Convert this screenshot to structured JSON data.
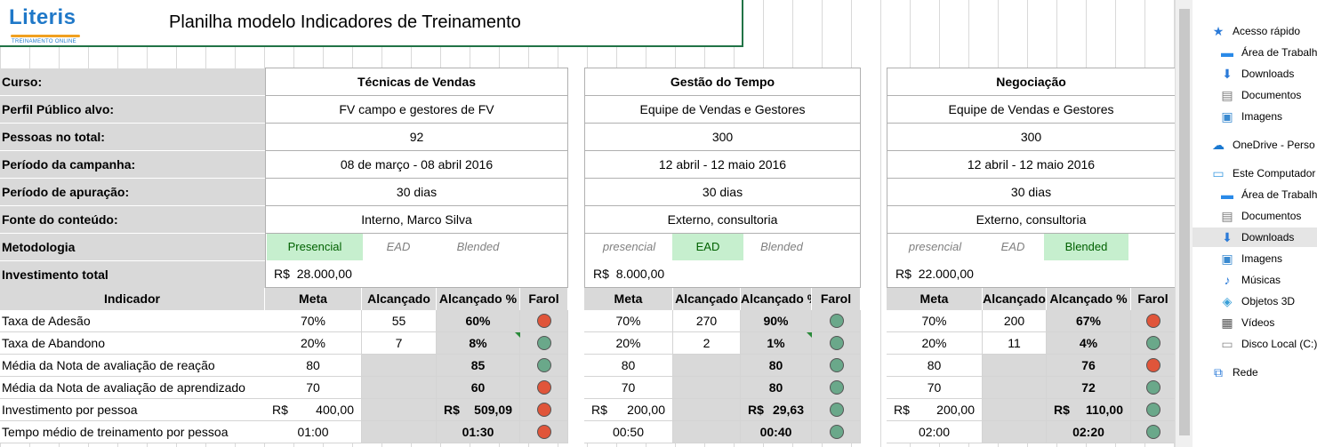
{
  "header": {
    "logo_text": "Literis",
    "logo_tagline": "TREINAMENTO ONLINE",
    "title": "Planilha modelo Indicadores de Treinamento"
  },
  "labels": {
    "curso": "Curso:",
    "perfil": "Perfil Público alvo:",
    "pessoas": "Pessoas no total:",
    "periodo_campanha": "Período da campanha:",
    "periodo_apuracao": "Período de apuração:",
    "fonte": "Fonte do conteúdo:",
    "metodologia": "Metodologia",
    "investimento": "Investimento total",
    "indicador": "Indicador"
  },
  "indicator_headers": {
    "meta": "Meta",
    "alcancado": "Alcançado",
    "alcancado_pct": "Alcançado %",
    "farol": "Farol"
  },
  "indicators": [
    "Taxa de Adesão",
    "Taxa de Abandono",
    "Média da Nota de avaliação de reação",
    "Média da Nota de avaliação de aprendizado",
    "Investimento por pessoa",
    "Tempo médio de treinamento por pessoa"
  ],
  "currency": "R$",
  "courses": [
    {
      "curso": "Técnicas de Vendas",
      "perfil": "FV campo e gestores de FV",
      "pessoas": "92",
      "periodo_campanha": "08 de março - 08 abril 2016",
      "periodo_apuracao": "30 dias",
      "fonte": "Interno, Marco Silva",
      "metodologia": [
        "Presencial",
        "EAD",
        "Blended"
      ],
      "metodologia_selected": 0,
      "investimento": "28.000,00",
      "rows": [
        {
          "meta": "70%",
          "alcancado": "55",
          "pct": "60%",
          "farol": "red"
        },
        {
          "meta": "20%",
          "alcancado": "7",
          "pct": "8%",
          "farol": "green"
        },
        {
          "meta": "80",
          "alcancado": "",
          "pct": "85",
          "farol": "green"
        },
        {
          "meta": "70",
          "alcancado": "",
          "pct": "60",
          "farol": "red"
        },
        {
          "meta": "400,00",
          "alcancado": "",
          "pct": "509,09",
          "farol": "red"
        },
        {
          "meta": "01:00",
          "alcancado": "",
          "pct": "01:30",
          "farol": "red"
        }
      ]
    },
    {
      "curso": "Gestão do Tempo",
      "perfil": "Equipe de Vendas e Gestores",
      "pessoas": "300",
      "periodo_campanha": "12 abril - 12 maio 2016",
      "periodo_apuracao": "30 dias",
      "fonte": "Externo, consultoria",
      "metodologia": [
        "presencial",
        "EAD",
        "Blended"
      ],
      "metodologia_selected": 1,
      "investimento": "8.000,00",
      "rows": [
        {
          "meta": "70%",
          "alcancado": "270",
          "pct": "90%",
          "farol": "green"
        },
        {
          "meta": "20%",
          "alcancado": "2",
          "pct": "1%",
          "farol": "green"
        },
        {
          "meta": "80",
          "alcancado": "",
          "pct": "80",
          "farol": "green"
        },
        {
          "meta": "70",
          "alcancado": "",
          "pct": "80",
          "farol": "green"
        },
        {
          "meta": "200,00",
          "alcancado": "",
          "pct": "29,63",
          "farol": "green"
        },
        {
          "meta": "00:50",
          "alcancado": "",
          "pct": "00:40",
          "farol": "green"
        }
      ]
    },
    {
      "curso": "Negociação",
      "perfil": "Equipe de Vendas e Gestores",
      "pessoas": "300",
      "periodo_campanha": "12 abril - 12 maio 2016",
      "periodo_apuracao": "30 dias",
      "fonte": "Externo, consultoria",
      "metodologia": [
        "presencial",
        "EAD",
        "Blended"
      ],
      "metodologia_selected": 2,
      "investimento": "22.000,00",
      "rows": [
        {
          "meta": "70%",
          "alcancado": "200",
          "pct": "67%",
          "farol": "red"
        },
        {
          "meta": "20%",
          "alcancado": "11",
          "pct": "4%",
          "farol": "green"
        },
        {
          "meta": "80",
          "alcancado": "",
          "pct": "76",
          "farol": "red"
        },
        {
          "meta": "70",
          "alcancado": "",
          "pct": "72",
          "farol": "green"
        },
        {
          "meta": "200,00",
          "alcancado": "",
          "pct": "110,00",
          "farol": "green"
        },
        {
          "meta": "02:00",
          "alcancado": "",
          "pct": "02:20",
          "farol": "green"
        }
      ]
    }
  ],
  "nav": {
    "items": [
      {
        "label": "Acesso rápido",
        "icon": "star-icon",
        "level": 0
      },
      {
        "label": "Área de Trabalho",
        "icon": "desktop-icon",
        "level": 1
      },
      {
        "label": "Downloads",
        "icon": "download-icon",
        "level": 1
      },
      {
        "label": "Documentos",
        "icon": "document-icon",
        "level": 1
      },
      {
        "label": "Imagens",
        "icon": "image-icon",
        "level": 1
      },
      {
        "label": "OneDrive - Perso",
        "icon": "cloud-icon",
        "level": 0
      },
      {
        "label": "Este Computador",
        "icon": "computer-icon",
        "level": 0
      },
      {
        "label": "Área de Trabalho",
        "icon": "desktop-icon",
        "level": 1
      },
      {
        "label": "Documentos",
        "icon": "document-icon",
        "level": 1
      },
      {
        "label": "Downloads",
        "icon": "download-icon",
        "level": 1,
        "selected": true
      },
      {
        "label": "Imagens",
        "icon": "image-icon",
        "level": 1
      },
      {
        "label": "Músicas",
        "icon": "music-icon",
        "level": 1
      },
      {
        "label": "Objetos 3D",
        "icon": "cube-icon",
        "level": 1
      },
      {
        "label": "Vídeos",
        "icon": "video-icon",
        "level": 1
      },
      {
        "label": "Disco Local (C:)",
        "icon": "disk-icon",
        "level": 1
      },
      {
        "label": "Rede",
        "icon": "network-icon",
        "level": 0
      }
    ]
  },
  "colors": {
    "accent_green": "#217346",
    "selected_fill": "#c6efce",
    "farol_red": "#e0553a",
    "farol_green": "#6aa88a"
  }
}
